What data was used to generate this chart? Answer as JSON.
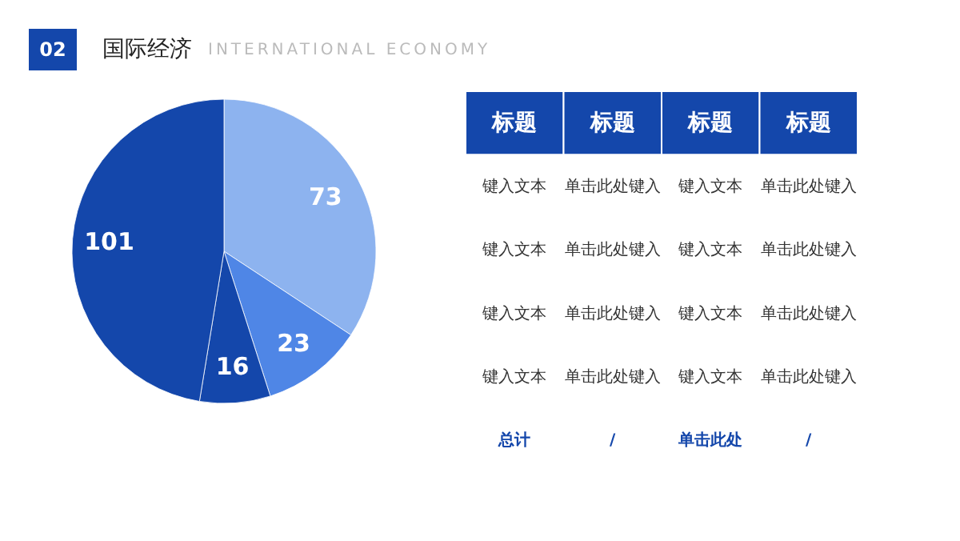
{
  "chart_data": [
    {
      "type": "pie",
      "title": "国际经济",
      "subtitle": "INTERNATIONAL ECONOMY",
      "annotations": [
        "02"
      ],
      "categories": [
        null,
        null,
        null,
        null
      ],
      "values": [
        73,
        23,
        16,
        101
      ],
      "colors": [
        "#8db3ef",
        "#4f86e6",
        "#1447ab",
        "#1447ab"
      ],
      "data_labels": true,
      "legend": false
    },
    {
      "type": "other",
      "categories": [
        "标题",
        "标题",
        "标题",
        "标题"
      ],
      "cell_labels": [
        [
          "键入文本",
          "单击此处键入",
          "键入文本",
          "单击此处键入"
        ],
        [
          "键入文本",
          "单击此处键入",
          "键入文本",
          "单击此处键入"
        ],
        [
          "键入文本",
          "单击此处键入",
          "键入文本",
          "单击此处键入"
        ],
        [
          "键入文本",
          "单击此处键入",
          "键入文本",
          "单击此处键入"
        ],
        [
          "总计",
          "/",
          "单击此处",
          "/"
        ]
      ]
    }
  ]
}
